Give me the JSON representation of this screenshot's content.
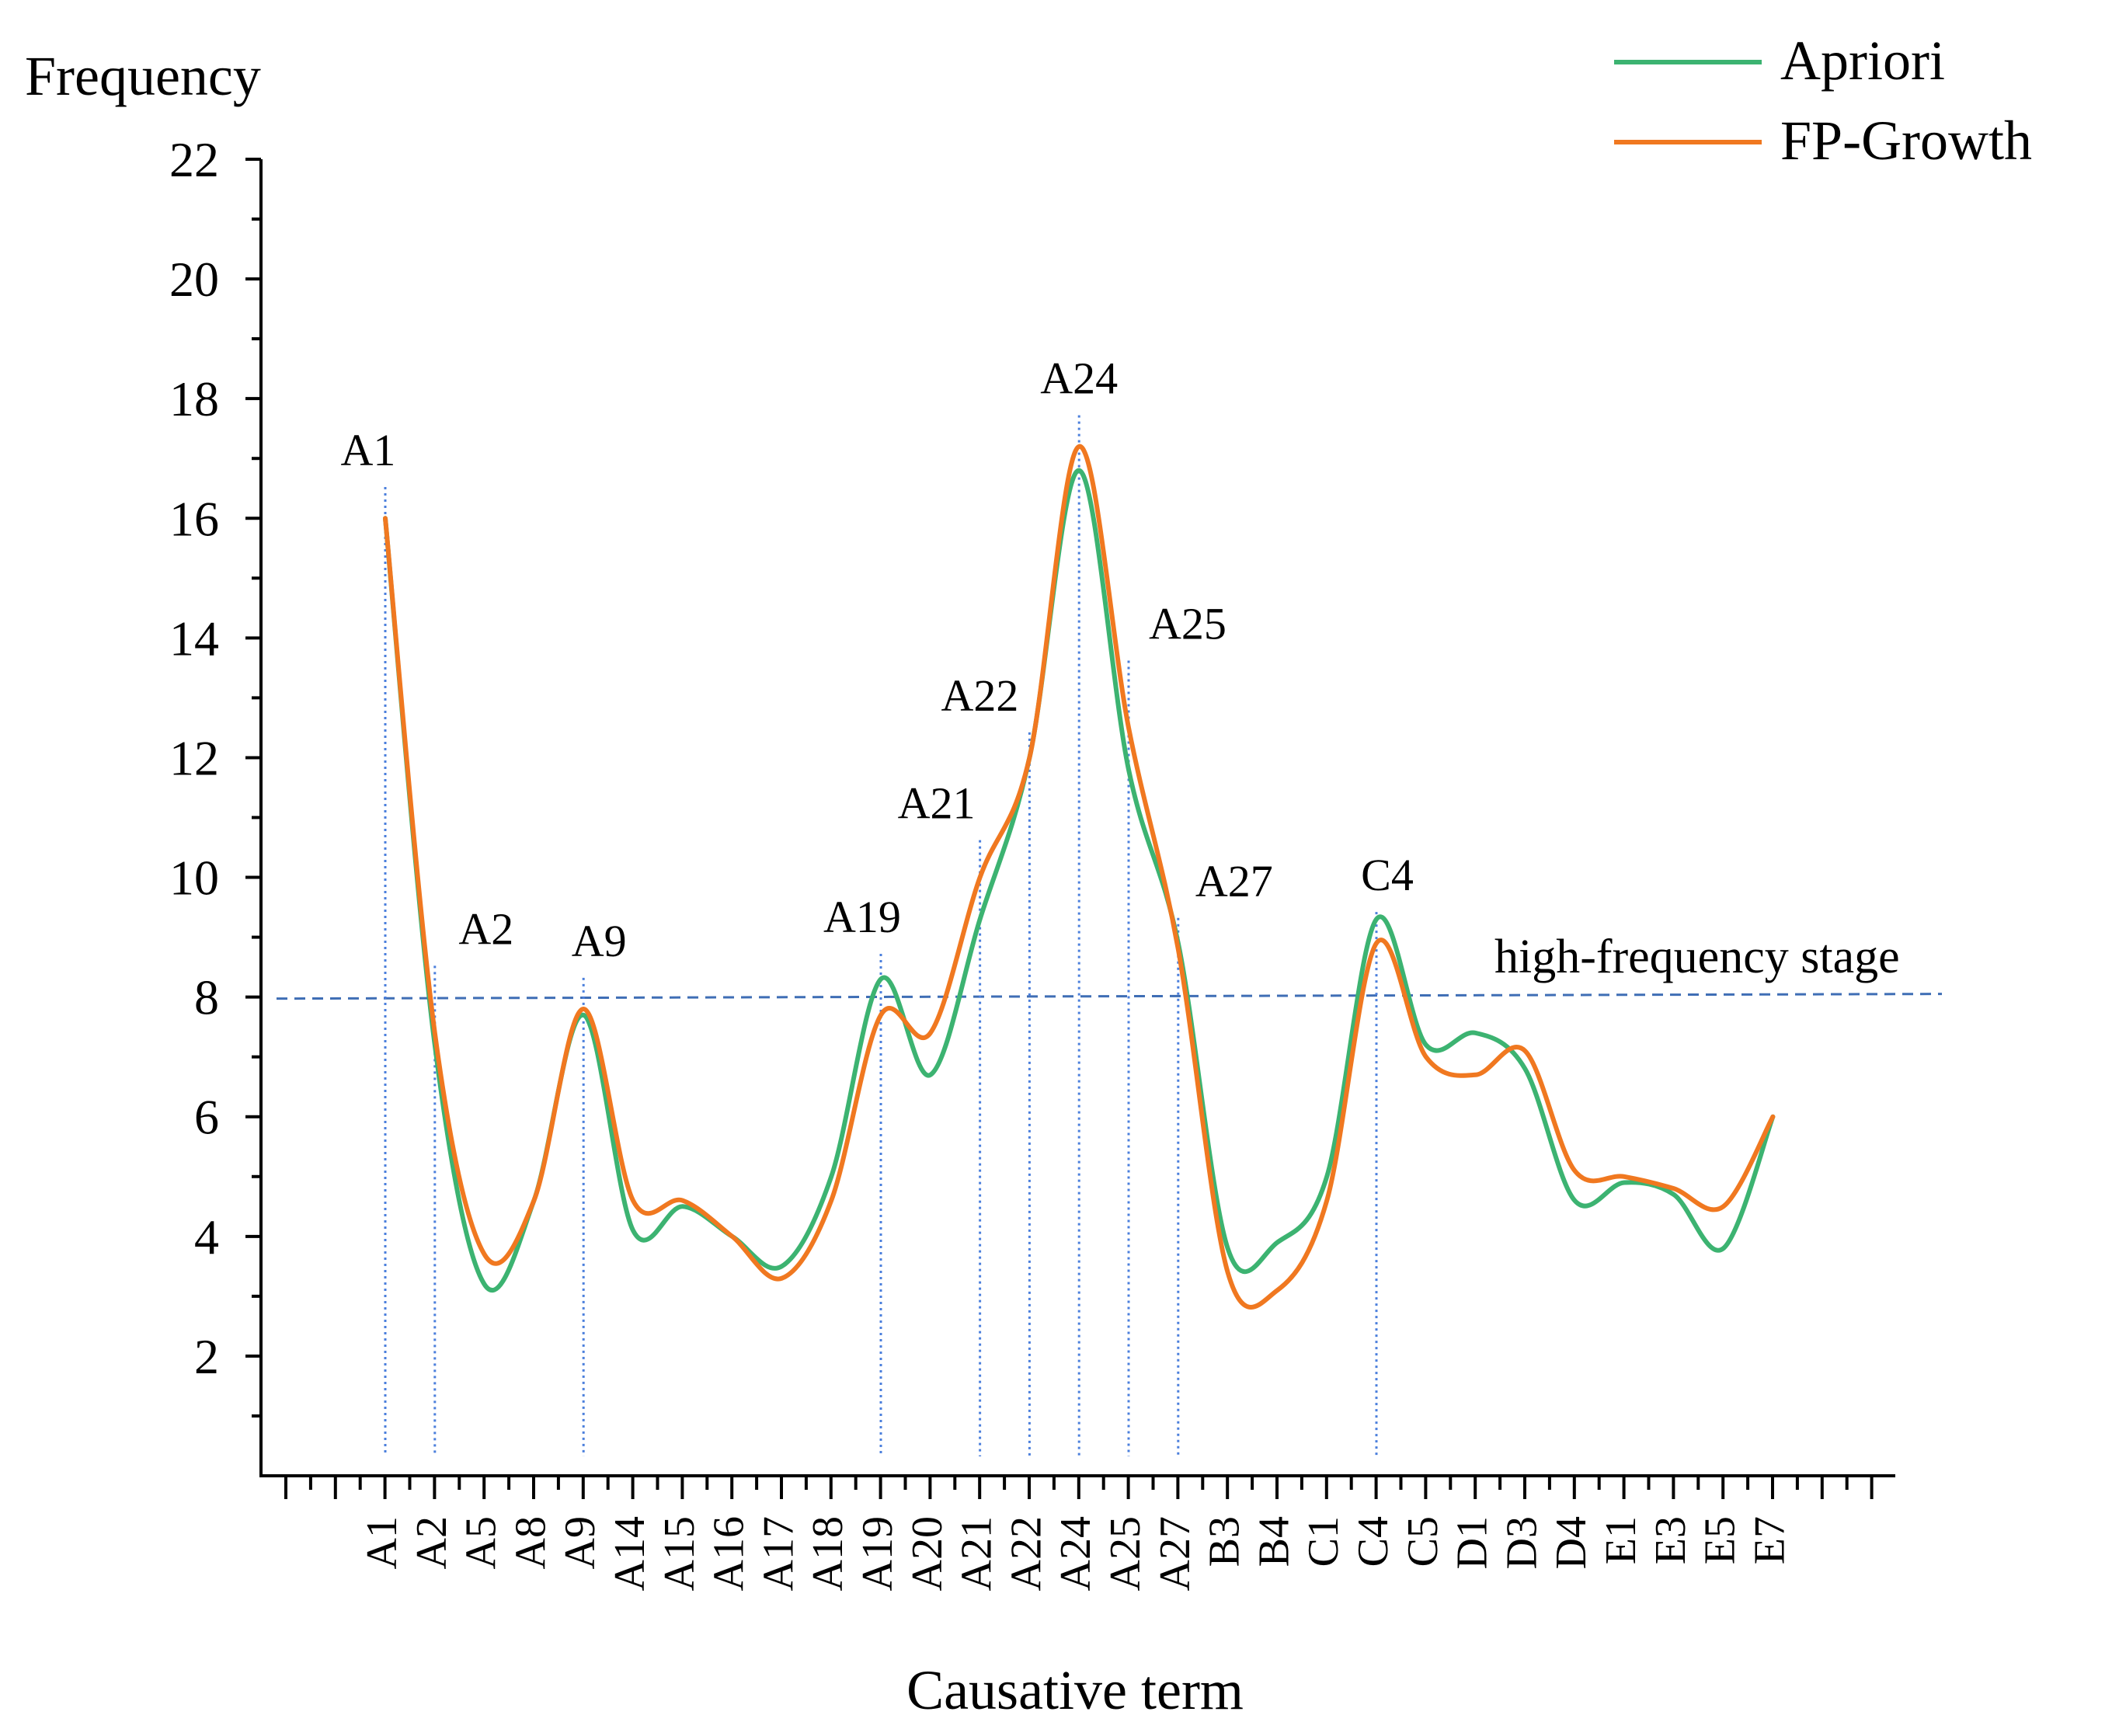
{
  "chart_data": {
    "type": "line",
    "title": "",
    "xlabel": "Causative term",
    "ylabel": "Frequency",
    "ylim": [
      0,
      22
    ],
    "yticks": [
      2,
      4,
      6,
      8,
      10,
      12,
      14,
      16,
      18,
      20,
      22
    ],
    "categories": [
      "A1",
      "A2",
      "A5",
      "A8",
      "A9",
      "A14",
      "A15",
      "A16",
      "A17",
      "A18",
      "A19",
      "A20",
      "A21",
      "A22",
      "A24",
      "A25",
      "A27",
      "B3",
      "B4",
      "C1",
      "C4",
      "C5",
      "D1",
      "D3",
      "D4",
      "E1",
      "E3",
      "E5",
      "E7"
    ],
    "series": [
      {
        "name": "Apriori",
        "color": "#3cb371",
        "values": [
          16,
          7.2,
          3.2,
          4.6,
          7.7,
          4.1,
          4.5,
          4.0,
          3.5,
          5.0,
          8.3,
          6.7,
          9.3,
          12.0,
          16.8,
          11.8,
          8.9,
          3.8,
          3.9,
          5.0,
          9.3,
          7.2,
          7.4,
          6.8,
          4.6,
          4.9,
          4.7,
          3.8,
          6.0
        ]
      },
      {
        "name": "FP-Growth",
        "color": "#f07820",
        "values": [
          16,
          7.4,
          3.7,
          4.6,
          7.8,
          4.6,
          4.6,
          4.0,
          3.3,
          4.6,
          7.7,
          7.4,
          10.0,
          12.0,
          17.2,
          12.5,
          8.8,
          3.4,
          3.1,
          4.6,
          8.9,
          7.0,
          6.7,
          7.1,
          5.1,
          5.0,
          4.8,
          4.5,
          6.0
        ]
      }
    ],
    "legend": {
      "position": "top-right",
      "entries": [
        "Apriori",
        "FP-Growth"
      ]
    },
    "threshold": {
      "value": 8,
      "label": "high-frequency stage",
      "style": "dashed"
    },
    "annotations": [
      {
        "label": "A1",
        "category": "A1",
        "value": 16.6
      },
      {
        "label": "A2",
        "category": "A2",
        "value": 8.6
      },
      {
        "label": "A9",
        "category": "A9",
        "value": 8.4
      },
      {
        "label": "A19",
        "category": "A19",
        "value": 8.8
      },
      {
        "label": "A21",
        "category": "A21",
        "value": 10.7
      },
      {
        "label": "A22",
        "category": "A22",
        "value": 12.5
      },
      {
        "label": "A24",
        "category": "A24",
        "value": 17.8
      },
      {
        "label": "A25",
        "category": "A25",
        "value": 13.7
      },
      {
        "label": "A27",
        "category": "A27",
        "value": 9.4
      },
      {
        "label": "C4",
        "category": "C4",
        "value": 9.5
      }
    ]
  }
}
